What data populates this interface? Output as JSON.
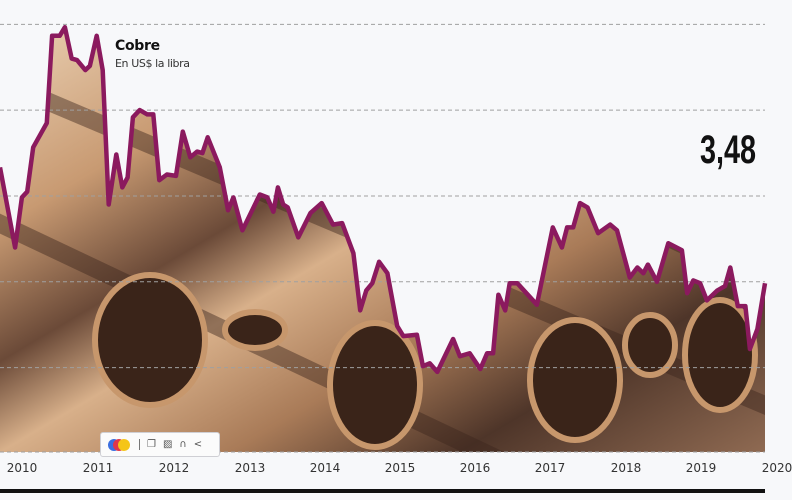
{
  "chart_data": {
    "type": "area",
    "title": "Cobre",
    "subtitle": "En US$ la libra",
    "highlight_value": "3,48",
    "xlabel": "",
    "ylabel": "",
    "x_tick_labels": [
      "2010",
      "2011",
      "2012",
      "2013",
      "2014",
      "2015",
      "2016",
      "2017",
      "2018",
      "2019",
      "2020"
    ],
    "xlim": [
      2010.21,
      2020.34
    ],
    "ylim": [
      1.41,
      4.57
    ],
    "gridlines_y": [
      2.0,
      2.6,
      3.2,
      3.8,
      4.4
    ],
    "grid": true,
    "line_color": "#8b1a5e",
    "fill": "copper-pipes-photo",
    "series": [
      {
        "points": [
          [
            2010.21,
            3.4
          ],
          [
            2010.41,
            2.84
          ],
          [
            2010.5,
            3.19
          ],
          [
            2010.57,
            3.23
          ],
          [
            2010.65,
            3.54
          ],
          [
            2010.83,
            3.71
          ],
          [
            2010.9,
            4.32
          ],
          [
            2011.0,
            4.32
          ],
          [
            2011.07,
            4.38
          ],
          [
            2011.16,
            4.16
          ],
          [
            2011.23,
            4.15
          ],
          [
            2011.34,
            4.08
          ],
          [
            2011.4,
            4.11
          ],
          [
            2011.49,
            4.32
          ],
          [
            2011.57,
            4.08
          ],
          [
            2011.65,
            3.14
          ],
          [
            2011.75,
            3.49
          ],
          [
            2011.83,
            3.26
          ],
          [
            2011.9,
            3.33
          ],
          [
            2011.97,
            3.75
          ],
          [
            2012.06,
            3.8
          ],
          [
            2012.16,
            3.77
          ],
          [
            2012.24,
            3.77
          ],
          [
            2012.32,
            3.31
          ],
          [
            2012.42,
            3.35
          ],
          [
            2012.54,
            3.34
          ],
          [
            2012.63,
            3.65
          ],
          [
            2012.73,
            3.47
          ],
          [
            2012.82,
            3.51
          ],
          [
            2012.89,
            3.5
          ],
          [
            2012.96,
            3.61
          ],
          [
            2013.12,
            3.4
          ],
          [
            2013.23,
            3.1
          ],
          [
            2013.3,
            3.19
          ],
          [
            2013.42,
            2.96
          ],
          [
            2013.65,
            3.21
          ],
          [
            2013.75,
            3.19
          ],
          [
            2013.83,
            3.09
          ],
          [
            2013.89,
            3.26
          ],
          [
            2013.96,
            3.14
          ],
          [
            2014.02,
            3.12
          ],
          [
            2014.16,
            2.91
          ],
          [
            2014.32,
            3.08
          ],
          [
            2014.47,
            3.15
          ],
          [
            2014.62,
            3.0
          ],
          [
            2014.74,
            3.01
          ],
          [
            2014.89,
            2.8
          ],
          [
            2014.98,
            2.4
          ],
          [
            2015.06,
            2.54
          ],
          [
            2015.14,
            2.59
          ],
          [
            2015.23,
            2.74
          ],
          [
            2015.34,
            2.66
          ],
          [
            2015.47,
            2.29
          ],
          [
            2015.55,
            2.22
          ],
          [
            2015.73,
            2.23
          ],
          [
            2015.81,
            2.01
          ],
          [
            2015.9,
            2.03
          ],
          [
            2016.0,
            1.97
          ],
          [
            2016.21,
            2.2
          ],
          [
            2016.3,
            2.08
          ],
          [
            2016.43,
            2.1
          ],
          [
            2016.57,
            1.99
          ],
          [
            2016.66,
            2.1
          ],
          [
            2016.74,
            2.1
          ],
          [
            2016.81,
            2.51
          ],
          [
            2016.9,
            2.4
          ],
          [
            2016.96,
            2.59
          ],
          [
            2017.06,
            2.59
          ],
          [
            2017.32,
            2.44
          ],
          [
            2017.53,
            2.98
          ],
          [
            2017.65,
            2.84
          ],
          [
            2017.72,
            2.98
          ],
          [
            2017.8,
            2.98
          ],
          [
            2017.89,
            3.15
          ],
          [
            2017.99,
            3.12
          ],
          [
            2018.13,
            2.94
          ],
          [
            2018.29,
            3.0
          ],
          [
            2018.38,
            2.96
          ],
          [
            2018.55,
            2.63
          ],
          [
            2018.65,
            2.7
          ],
          [
            2018.73,
            2.66
          ],
          [
            2018.79,
            2.72
          ],
          [
            2018.91,
            2.6
          ],
          [
            2019.06,
            2.87
          ],
          [
            2019.24,
            2.82
          ],
          [
            2019.31,
            2.52
          ],
          [
            2019.39,
            2.61
          ],
          [
            2019.48,
            2.59
          ],
          [
            2019.57,
            2.47
          ],
          [
            2019.71,
            2.54
          ],
          [
            2019.81,
            2.57
          ],
          [
            2019.88,
            2.7
          ],
          [
            2019.98,
            2.43
          ],
          [
            2020.08,
            2.43
          ],
          [
            2020.14,
            2.13
          ],
          [
            2020.24,
            2.27
          ],
          [
            2020.34,
            2.59
          ]
        ]
      }
    ]
  },
  "toolbar": {
    "icons": [
      "translator-logo-icon",
      "copy-icon",
      "translate-icon",
      "listen-icon",
      "share-icon"
    ]
  },
  "colors": {
    "background": "#f7f8fa",
    "line": "#8b1a5e",
    "grid": "#9a9a9a",
    "copper_light": "#e8c9a6",
    "copper_mid": "#b98a63",
    "copper_dark": "#4a3226"
  }
}
